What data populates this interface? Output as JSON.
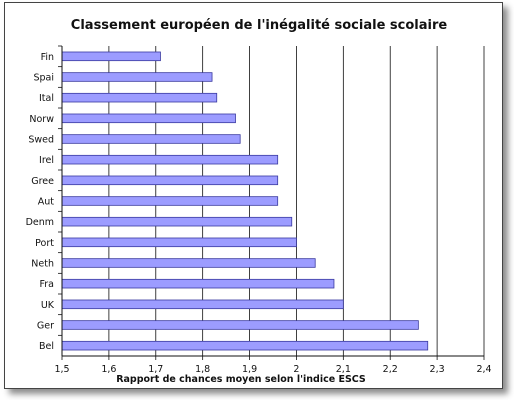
{
  "chart_data": {
    "type": "bar",
    "orientation": "horizontal",
    "title": "Classement européen de l'inégalité sociale scolaire",
    "xlabel": "Rapport de chances moyen selon l'indice ESCS",
    "ylabel": "",
    "categories": [
      "Fin",
      "Spai",
      "Ital",
      "Norw",
      "Swed",
      "Irel",
      "Gree",
      "Aut",
      "Denm",
      "Port",
      "Neth",
      "Fra",
      "UK",
      "Ger",
      "Bel"
    ],
    "values": [
      1.71,
      1.82,
      1.83,
      1.87,
      1.88,
      1.96,
      1.96,
      1.96,
      1.99,
      2.0,
      2.04,
      2.08,
      2.1,
      2.26,
      2.28
    ],
    "xlim": [
      1.5,
      2.4
    ],
    "xticks": [
      "1,5",
      "1,6",
      "1,7",
      "1,8",
      "1,9",
      "2",
      "2,1",
      "2,2",
      "2,3",
      "2,4"
    ],
    "grid": "vertical",
    "legend": "none",
    "colors": {
      "bar_fill": "#9c9cff",
      "bar_stroke": "#3a3aa0",
      "grid": "#111111",
      "axis": "#111111"
    }
  }
}
